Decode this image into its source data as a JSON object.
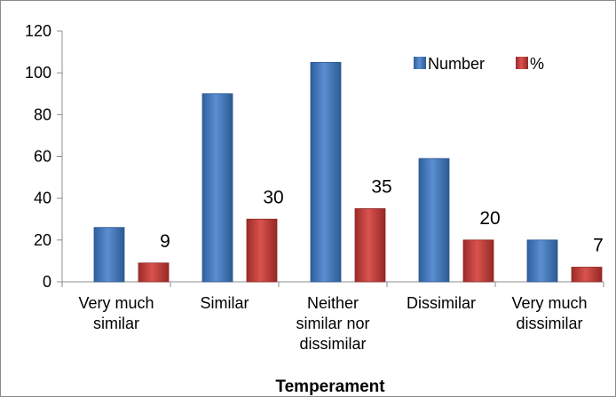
{
  "chart_data": {
    "type": "bar",
    "title": "",
    "xlabel": "Temperament",
    "ylabel": "",
    "ylim": [
      0,
      120
    ],
    "yticks": [
      "0",
      "20",
      "40",
      "60",
      "80",
      "100",
      "120"
    ],
    "categories": [
      [
        "Very much",
        "similar"
      ],
      [
        "Similar"
      ],
      [
        "Neither",
        "similar nor",
        "dissimilar"
      ],
      [
        "Dissimilar"
      ],
      [
        "Very much",
        "dissimilar"
      ]
    ],
    "series": [
      {
        "name": "Number",
        "values": [
          26,
          90,
          105,
          59,
          20
        ],
        "color": "#4a7ebb"
      },
      {
        "name": "%",
        "values": [
          9,
          30,
          35,
          20,
          7
        ],
        "color": "#c0504d"
      }
    ],
    "data_labels": {
      "series": "%",
      "values": [
        "9",
        "30",
        "35",
        "20",
        "7"
      ]
    },
    "legend_position": "top-right",
    "grid": false
  }
}
